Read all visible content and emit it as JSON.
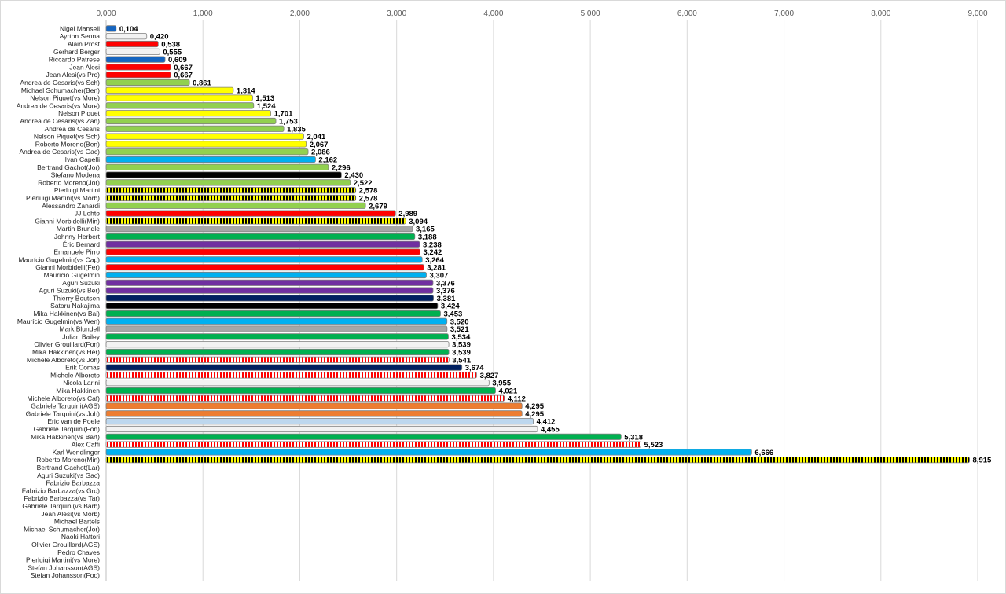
{
  "chart_data": {
    "type": "bar",
    "orientation": "horizontal",
    "title": "",
    "xlabel": "",
    "ylabel": "",
    "xlim": [
      0,
      9
    ],
    "xticks": [
      "0,000",
      "1,000",
      "2,000",
      "3,000",
      "4,000",
      "5,000",
      "6,000",
      "7,000",
      "8,000",
      "9,000"
    ],
    "xaxis_position": "top",
    "grid": true,
    "colors": {
      "blue_dark": "#1565c0",
      "white": "#f2f2f2",
      "red": "#ff0000",
      "lightgreen": "#92d050",
      "yellow": "#ffff00",
      "cyan": "#00b0f0",
      "black": "#000000",
      "gray": "#a6a6a6",
      "green": "#00b050",
      "purple": "#7030a0",
      "navy": "#002060",
      "orange": "#ed7d31",
      "lightblue": "#bdd7ee",
      "tick_text": "#595959",
      "grid": "#d9d9d9"
    },
    "bars": [
      {
        "name": "Nigel Mansell",
        "value": 0.104,
        "label": "0,104",
        "color": "blue_dark",
        "pattern": "solid"
      },
      {
        "name": "Ayrton Senna",
        "value": 0.42,
        "label": "0,420",
        "color": "white",
        "pattern": "solid"
      },
      {
        "name": "Alain Prost",
        "value": 0.538,
        "label": "0,538",
        "color": "red",
        "pattern": "solid"
      },
      {
        "name": "Gerhard Berger",
        "value": 0.555,
        "label": "0,555",
        "color": "white",
        "pattern": "solid"
      },
      {
        "name": "Riccardo Patrese",
        "value": 0.609,
        "label": "0,609",
        "color": "blue_dark",
        "pattern": "solid"
      },
      {
        "name": "Jean Alesi",
        "value": 0.667,
        "label": "0,667",
        "color": "red",
        "pattern": "solid"
      },
      {
        "name": "Jean Alesi(vs Pro)",
        "value": 0.667,
        "label": "0,667",
        "color": "red",
        "pattern": "solid"
      },
      {
        "name": "Andrea de Cesaris(vs Sch)",
        "value": 0.861,
        "label": "0,861",
        "color": "lightgreen",
        "pattern": "solid"
      },
      {
        "name": "Michael Schumacher(Ben)",
        "value": 1.314,
        "label": "1,314",
        "color": "yellow",
        "pattern": "solid"
      },
      {
        "name": "Nelson Piquet(vs More)",
        "value": 1.513,
        "label": "1,513",
        "color": "yellow",
        "pattern": "solid"
      },
      {
        "name": "Andrea de Cesaris(vs More)",
        "value": 1.524,
        "label": "1,524",
        "color": "lightgreen",
        "pattern": "solid"
      },
      {
        "name": "Nelson Piquet",
        "value": 1.701,
        "label": "1,701",
        "color": "yellow",
        "pattern": "solid"
      },
      {
        "name": "Andrea de Cesaris(vs Zan)",
        "value": 1.753,
        "label": "1,753",
        "color": "lightgreen",
        "pattern": "solid"
      },
      {
        "name": "Andrea de Cesaris",
        "value": 1.835,
        "label": "1,835",
        "color": "lightgreen",
        "pattern": "solid"
      },
      {
        "name": "Nelson Piquet(vs Sch)",
        "value": 2.041,
        "label": "2,041",
        "color": "yellow",
        "pattern": "solid"
      },
      {
        "name": "Roberto Moreno(Ben)",
        "value": 2.067,
        "label": "2,067",
        "color": "yellow",
        "pattern": "solid"
      },
      {
        "name": "Andrea de Cesaris(vs Gac)",
        "value": 2.086,
        "label": "2,086",
        "color": "lightgreen",
        "pattern": "solid"
      },
      {
        "name": "Ivan Capelli",
        "value": 2.162,
        "label": "2,162",
        "color": "cyan",
        "pattern": "solid"
      },
      {
        "name": "Bertrand Gachot(Jor)",
        "value": 2.296,
        "label": "2,296",
        "color": "lightgreen",
        "pattern": "solid"
      },
      {
        "name": "Stefano Modena",
        "value": 2.43,
        "label": "2,430",
        "color": "black",
        "pattern": "solid"
      },
      {
        "name": "Roberto Moreno(Jor)",
        "value": 2.522,
        "label": "2,522",
        "color": "lightgreen",
        "pattern": "solid"
      },
      {
        "name": "Pierluigi Martini",
        "value": 2.578,
        "label": "2,578",
        "color": "yellow",
        "pattern": "black-yellow"
      },
      {
        "name": "Pierluigi Martini(vs Morb)",
        "value": 2.578,
        "label": "2,578",
        "color": "yellow",
        "pattern": "black-yellow"
      },
      {
        "name": "Alessandro Zanardi",
        "value": 2.679,
        "label": "2,679",
        "color": "lightgreen",
        "pattern": "solid"
      },
      {
        "name": "JJ Lehto",
        "value": 2.989,
        "label": "2,989",
        "color": "red",
        "pattern": "solid"
      },
      {
        "name": "Gianni Morbidelli(Min)",
        "value": 3.094,
        "label": "3,094",
        "color": "yellow",
        "pattern": "black-yellow"
      },
      {
        "name": "Martin Brundle",
        "value": 3.165,
        "label": "3,165",
        "color": "gray",
        "pattern": "solid"
      },
      {
        "name": "Johnny Herbert",
        "value": 3.188,
        "label": "3,188",
        "color": "green",
        "pattern": "solid"
      },
      {
        "name": "Éric Bernard",
        "value": 3.238,
        "label": "3,238",
        "color": "purple",
        "pattern": "solid"
      },
      {
        "name": "Emanuele Pirro",
        "value": 3.242,
        "label": "3,242",
        "color": "red",
        "pattern": "solid"
      },
      {
        "name": "Maurício Gugelmin(vs Cap)",
        "value": 3.264,
        "label": "3,264",
        "color": "cyan",
        "pattern": "solid"
      },
      {
        "name": "Gianni Morbidelli(Fer)",
        "value": 3.281,
        "label": "3,281",
        "color": "red",
        "pattern": "solid"
      },
      {
        "name": "Maurício Gugelmin",
        "value": 3.307,
        "label": "3,307",
        "color": "cyan",
        "pattern": "solid"
      },
      {
        "name": "Aguri Suzuki",
        "value": 3.376,
        "label": "3,376",
        "color": "purple",
        "pattern": "solid"
      },
      {
        "name": "Aguri Suzuki(vs Ber)",
        "value": 3.376,
        "label": "3,376",
        "color": "purple",
        "pattern": "solid"
      },
      {
        "name": "Thierry Boutsen",
        "value": 3.381,
        "label": "3,381",
        "color": "navy",
        "pattern": "solid"
      },
      {
        "name": "Satoru Nakajima",
        "value": 3.424,
        "label": "3,424",
        "color": "black",
        "pattern": "solid"
      },
      {
        "name": "Mika Hakkinen(vs Bai)",
        "value": 3.453,
        "label": "3,453",
        "color": "green",
        "pattern": "solid"
      },
      {
        "name": "Maurício Gugelmin(vs Wen)",
        "value": 3.52,
        "label": "3,520",
        "color": "cyan",
        "pattern": "solid"
      },
      {
        "name": "Mark Blundell",
        "value": 3.521,
        "label": "3,521",
        "color": "gray",
        "pattern": "solid"
      },
      {
        "name": "Julian Bailey",
        "value": 3.534,
        "label": "3,534",
        "color": "green",
        "pattern": "solid"
      },
      {
        "name": "Olivier Grouillard(Fon)",
        "value": 3.539,
        "label": "3,539",
        "color": "white",
        "pattern": "solid"
      },
      {
        "name": "Mika Hakkinen(vs Her)",
        "value": 3.539,
        "label": "3,539",
        "color": "green",
        "pattern": "solid"
      },
      {
        "name": "Michele Alboreto(vs Joh)",
        "value": 3.541,
        "label": "3,541",
        "color": "red",
        "pattern": "red-white"
      },
      {
        "name": "Erik Comas",
        "value": 3.674,
        "label": "3,674",
        "color": "navy",
        "pattern": "solid"
      },
      {
        "name": "Michele Alboreto",
        "value": 3.827,
        "label": "3,827",
        "color": "red",
        "pattern": "red-white"
      },
      {
        "name": "Nicola Larini",
        "value": 3.955,
        "label": "3,955",
        "color": "white",
        "pattern": "solid"
      },
      {
        "name": "Mika Hakkinen",
        "value": 4.021,
        "label": "4,021",
        "color": "green",
        "pattern": "solid"
      },
      {
        "name": "Michele Alboreto(vs Caf)",
        "value": 4.112,
        "label": "4,112",
        "color": "red",
        "pattern": "red-white"
      },
      {
        "name": "Gabriele Tarquini(AGS)",
        "value": 4.295,
        "label": "4,295",
        "color": "orange",
        "pattern": "solid"
      },
      {
        "name": "Gabriele Tarquini(vs Joh)",
        "value": 4.295,
        "label": "4,295",
        "color": "orange",
        "pattern": "solid"
      },
      {
        "name": "Eric van de Poele",
        "value": 4.412,
        "label": "4,412",
        "color": "lightblue",
        "pattern": "solid"
      },
      {
        "name": "Gabriele Tarquini(Fon)",
        "value": 4.455,
        "label": "4,455",
        "color": "white",
        "pattern": "solid"
      },
      {
        "name": "Mika Hakkinen(vs Bart)",
        "value": 5.318,
        "label": "5,318",
        "color": "green",
        "pattern": "solid"
      },
      {
        "name": "Alex Caffi",
        "value": 5.523,
        "label": "5,523",
        "color": "red",
        "pattern": "red-white"
      },
      {
        "name": "Karl Wendlinger",
        "value": 6.666,
        "label": "6,666",
        "color": "cyan",
        "pattern": "solid"
      },
      {
        "name": "Roberto Moreno(Min)",
        "value": 8.915,
        "label": "8,915",
        "color": "yellow",
        "pattern": "black-yellow"
      },
      {
        "name": "Bertrand Gachot(Lar)",
        "value": null,
        "label": "",
        "color": "",
        "pattern": "none"
      },
      {
        "name": "Aguri Suzuki(vs Gac)",
        "value": null,
        "label": "",
        "color": "",
        "pattern": "none"
      },
      {
        "name": "Fabrizio Barbazza",
        "value": null,
        "label": "",
        "color": "",
        "pattern": "none"
      },
      {
        "name": "Fabrizio Barbazza(vs Gro)",
        "value": null,
        "label": "",
        "color": "",
        "pattern": "none"
      },
      {
        "name": "Fabrizio Barbazza(vs Tar)",
        "value": null,
        "label": "",
        "color": "",
        "pattern": "none"
      },
      {
        "name": "Gabriele Tarquini(vs Barb)",
        "value": null,
        "label": "",
        "color": "",
        "pattern": "none"
      },
      {
        "name": "Jean Alesi(vs Morb)",
        "value": null,
        "label": "",
        "color": "",
        "pattern": "none"
      },
      {
        "name": "Michael Bartels",
        "value": null,
        "label": "",
        "color": "",
        "pattern": "none"
      },
      {
        "name": "Michael Schumacher(Jor)",
        "value": null,
        "label": "",
        "color": "",
        "pattern": "none"
      },
      {
        "name": "Naoki Hattori",
        "value": null,
        "label": "",
        "color": "",
        "pattern": "none"
      },
      {
        "name": "Olivier Grouillard(AGS)",
        "value": null,
        "label": "",
        "color": "",
        "pattern": "none"
      },
      {
        "name": "Pedro Chaves",
        "value": null,
        "label": "",
        "color": "",
        "pattern": "none"
      },
      {
        "name": "Pierluigi Martini(vs More)",
        "value": null,
        "label": "",
        "color": "",
        "pattern": "none"
      },
      {
        "name": "Stefan Johansson(AGS)",
        "value": null,
        "label": "",
        "color": "",
        "pattern": "none"
      },
      {
        "name": "Stefan Johansson(Foo)",
        "value": null,
        "label": "",
        "color": "",
        "pattern": "none"
      }
    ]
  }
}
